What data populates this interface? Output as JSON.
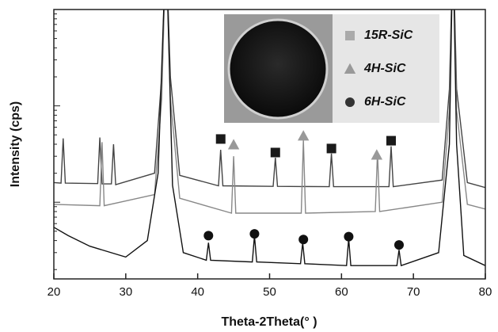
{
  "chart_data": {
    "type": "line",
    "xlabel": "Theta-2Theta(°  )",
    "ylabel": "Intensity (cps)",
    "xlim": [
      20,
      80
    ],
    "xticks": [
      20,
      30,
      40,
      50,
      60,
      70,
      80
    ],
    "ylim": [
      16,
      10000
    ],
    "yscale": "log",
    "series": [
      {
        "name": "15R-SiC",
        "color": "#444444",
        "x": [
          20,
          21.0,
          21.3,
          21.6,
          26.1,
          26.4,
          26.7,
          28.0,
          28.3,
          28.6,
          34.0,
          35.0,
          35.6,
          36.2,
          37.5,
          42.9,
          43.2,
          43.5,
          50.5,
          50.8,
          51.1,
          58.3,
          58.6,
          58.9,
          66.6,
          66.9,
          67.2,
          74.0,
          75.0,
          75.5,
          76.0,
          77.5,
          80
        ],
        "values": [
          160,
          158,
          460,
          158,
          156,
          470,
          155,
          155,
          400,
          152,
          200,
          2000,
          50000,
          2000,
          190,
          148,
          350,
          148,
          146,
          290,
          146,
          145,
          320,
          145,
          145,
          380,
          145,
          170,
          1500,
          50000,
          1500,
          160,
          142
        ]
      },
      {
        "name": "4H-SiC",
        "color": "#888888",
        "x": [
          20,
          26.4,
          26.7,
          27.0,
          34.0,
          35.0,
          35.6,
          36.2,
          37.5,
          44.7,
          45.0,
          45.3,
          54.4,
          54.7,
          55.0,
          64.7,
          65.0,
          65.3,
          74.0,
          75.0,
          75.5,
          76.0,
          77.5,
          80
        ],
        "values": [
          95,
          92,
          420,
          92,
          120,
          1200,
          50000,
          1200,
          110,
          77,
          300,
          77,
          77,
          440,
          77,
          80,
          330,
          80,
          100,
          900,
          50000,
          900,
          95,
          85
        ]
      },
      {
        "name": "6H-SiC",
        "color": "#111111",
        "x": [
          20,
          22,
          25,
          30,
          33,
          34.5,
          35.6,
          36.5,
          38,
          41.2,
          41.5,
          41.8,
          47.6,
          47.9,
          48.2,
          54.3,
          54.6,
          54.9,
          60.7,
          61.0,
          61.3,
          67.7,
          68.0,
          68.3,
          73.5,
          75.0,
          75.5,
          76.0,
          77,
          80
        ],
        "values": [
          55,
          45,
          35,
          27,
          40,
          200,
          50000,
          150,
          30,
          25,
          38,
          25,
          24,
          45,
          24,
          23,
          38,
          23,
          22,
          42,
          22,
          22,
          32,
          22,
          30,
          400,
          50000,
          400,
          28,
          22
        ]
      }
    ],
    "markers": [
      {
        "name": "15R-SiC",
        "shape": "square",
        "color": "#1a1a1a",
        "legend_color": "#aaaaaa",
        "x": [
          43.2,
          50.8,
          58.6,
          66.9
        ],
        "values": [
          453,
          328,
          361,
          435
        ]
      },
      {
        "name": "4H-SiC",
        "shape": "triangle",
        "color": "#999999",
        "legend_color": "#999999",
        "x": [
          45.0,
          54.7,
          64.9
        ],
        "values": [
          396,
          489,
          310
        ]
      },
      {
        "name": "6H-SiC",
        "shape": "circle",
        "color": "#111111",
        "legend_color": "#333333",
        "x": [
          41.5,
          47.9,
          54.7,
          61.0,
          68.0
        ],
        "values": [
          45,
          47,
          41,
          44,
          36
        ]
      }
    ]
  }
}
